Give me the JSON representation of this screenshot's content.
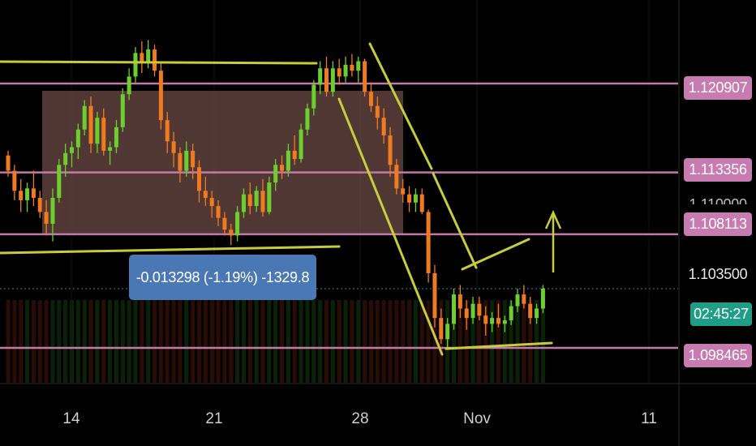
{
  "colors": {
    "up": "#6ccf2f",
    "down": "#f07a1f",
    "level_line": "#c27aa8",
    "level_tag": "#c87bb0",
    "trendline": "#c8cc3a",
    "range_box": "#6b4a46",
    "current_price_tag": "#1f9e87",
    "measure_box": "#4a78b5"
  },
  "chart_data": {
    "type": "candlestick",
    "x_axis": {
      "tick_labels": [
        "14",
        "21",
        "28",
        "Nov",
        "11"
      ]
    },
    "y_axis": {
      "ylim": [
        1.0955,
        1.128
      ]
    },
    "horizontal_levels": [
      1.120907,
      1.113356,
      1.108113,
      1.098465
    ],
    "current_price": 1.1035,
    "price_labels": [
      "1.120907",
      "1.113356",
      "1.110000",
      "1.108113",
      "1.103500",
      "1.098465"
    ],
    "countdown": "02:45:27",
    "measurement": "-0.013298 (-1.19%) -1329.8",
    "candles": [
      [
        1.1148,
        1.1152,
        1.113,
        1.1135
      ],
      [
        1.1135,
        1.114,
        1.111,
        1.1118
      ],
      [
        1.1118,
        1.1128,
        1.11,
        1.111
      ],
      [
        1.111,
        1.1125,
        1.11,
        1.112
      ],
      [
        1.112,
        1.1135,
        1.1105,
        1.1112
      ],
      [
        1.1112,
        1.1118,
        1.1095,
        1.11
      ],
      [
        1.11,
        1.111,
        1.108,
        1.109
      ],
      [
        1.109,
        1.112,
        1.1075,
        1.1112
      ],
      [
        1.1112,
        1.1145,
        1.1108,
        1.114
      ],
      [
        1.114,
        1.1158,
        1.113,
        1.115
      ],
      [
        1.115,
        1.116,
        1.1138,
        1.1155
      ],
      [
        1.1155,
        1.1175,
        1.1145,
        1.117
      ],
      [
        1.117,
        1.1195,
        1.1165,
        1.119
      ],
      [
        1.119,
        1.1198,
        1.115,
        1.1158
      ],
      [
        1.1158,
        1.1185,
        1.115,
        1.118
      ],
      [
        1.118,
        1.1188,
        1.1148,
        1.1152
      ],
      [
        1.1152,
        1.116,
        1.114,
        1.1155
      ],
      [
        1.1155,
        1.1178,
        1.115,
        1.1172
      ],
      [
        1.1172,
        1.1205,
        1.1168,
        1.12
      ],
      [
        1.12,
        1.1222,
        1.1195,
        1.1215
      ],
      [
        1.1215,
        1.124,
        1.121,
        1.1235
      ],
      [
        1.1235,
        1.1245,
        1.1218,
        1.1228
      ],
      [
        1.1228,
        1.1246,
        1.1222,
        1.1238
      ],
      [
        1.1238,
        1.1242,
        1.1215,
        1.122
      ],
      [
        1.122,
        1.1226,
        1.117,
        1.1178
      ],
      [
        1.1178,
        1.1185,
        1.115,
        1.116
      ],
      [
        1.116,
        1.1168,
        1.1138,
        1.115
      ],
      [
        1.115,
        1.1155,
        1.1125,
        1.1135
      ],
      [
        1.1135,
        1.116,
        1.113,
        1.1152
      ],
      [
        1.1152,
        1.1158,
        1.1128,
        1.1138
      ],
      [
        1.1138,
        1.1144,
        1.1108,
        1.1118
      ],
      [
        1.1118,
        1.113,
        1.1105,
        1.1112
      ],
      [
        1.1112,
        1.1118,
        1.1095,
        1.1105
      ],
      [
        1.1105,
        1.111,
        1.1088,
        1.1095
      ],
      [
        1.1095,
        1.11,
        1.108,
        1.1085
      ],
      [
        1.1085,
        1.109,
        1.1072,
        1.108
      ],
      [
        1.108,
        1.1105,
        1.1075,
        1.11
      ],
      [
        1.11,
        1.112,
        1.1095,
        1.1115
      ],
      [
        1.1115,
        1.1125,
        1.1098,
        1.1105
      ],
      [
        1.1105,
        1.1122,
        1.11,
        1.1118
      ],
      [
        1.1118,
        1.1128,
        1.1096,
        1.11
      ],
      [
        1.11,
        1.113,
        1.1098,
        1.1125
      ],
      [
        1.1125,
        1.1145,
        1.1118,
        1.114
      ],
      [
        1.114,
        1.1148,
        1.1128,
        1.1135
      ],
      [
        1.1135,
        1.1158,
        1.113,
        1.1152
      ],
      [
        1.1152,
        1.1165,
        1.114,
        1.1145
      ],
      [
        1.1145,
        1.1175,
        1.1142,
        1.117
      ],
      [
        1.117,
        1.1192,
        1.1165,
        1.1188
      ],
      [
        1.1188,
        1.1212,
        1.1182,
        1.1208
      ],
      [
        1.1208,
        1.1228,
        1.12,
        1.1222
      ],
      [
        1.1222,
        1.1232,
        1.1198,
        1.1202
      ],
      [
        1.1202,
        1.1228,
        1.1198,
        1.1222
      ],
      [
        1.1222,
        1.123,
        1.1208,
        1.1215
      ],
      [
        1.1215,
        1.1232,
        1.121,
        1.1225
      ],
      [
        1.1225,
        1.1234,
        1.1215,
        1.122
      ],
      [
        1.122,
        1.1232,
        1.121,
        1.1228
      ],
      [
        1.1228,
        1.123,
        1.1198,
        1.1202
      ],
      [
        1.1202,
        1.121,
        1.1185,
        1.119
      ],
      [
        1.119,
        1.1198,
        1.117,
        1.118
      ],
      [
        1.118,
        1.1188,
        1.1158,
        1.1165
      ],
      [
        1.1165,
        1.1172,
        1.113,
        1.114
      ],
      [
        1.114,
        1.1145,
        1.1115,
        1.112
      ],
      [
        1.112,
        1.1128,
        1.1108,
        1.1115
      ],
      [
        1.1115,
        1.1122,
        1.11,
        1.1108
      ],
      [
        1.1108,
        1.112,
        1.11,
        1.1115
      ],
      [
        1.1115,
        1.112,
        1.1098,
        1.11
      ],
      [
        1.11,
        1.1102,
        1.104,
        1.1048
      ],
      [
        1.1048,
        1.1055,
        1.1002,
        1.101
      ],
      [
        1.101,
        1.1018,
        1.0988,
        1.0992
      ],
      [
        1.0992,
        1.101,
        1.0985,
        1.1005
      ],
      [
        1.1005,
        1.1035,
        1.1,
        1.103
      ],
      [
        1.103,
        1.1038,
        1.101,
        1.1018
      ],
      [
        1.1018,
        1.1025,
        1.1,
        1.101
      ],
      [
        1.101,
        1.1028,
        1.1005,
        1.1022
      ],
      [
        1.1022,
        1.1028,
        1.1008,
        1.1012
      ],
      [
        1.1012,
        1.102,
        1.0995,
        1.1005
      ],
      [
        1.1005,
        1.1015,
        1.0998,
        1.101
      ],
      [
        1.101,
        1.1022,
        1.1002,
        1.1005
      ],
      [
        1.1005,
        1.1012,
        1.0998,
        1.1008
      ],
      [
        1.1008,
        1.1025,
        1.1004,
        1.102
      ],
      [
        1.102,
        1.1035,
        1.1015,
        1.103
      ],
      [
        1.103,
        1.1038,
        1.1018,
        1.1022
      ],
      [
        1.1022,
        1.1028,
        1.1005,
        1.101
      ],
      [
        1.101,
        1.1022,
        1.1005,
        1.1018
      ],
      [
        1.1018,
        1.1038,
        1.1014,
        1.1035
      ]
    ]
  }
}
